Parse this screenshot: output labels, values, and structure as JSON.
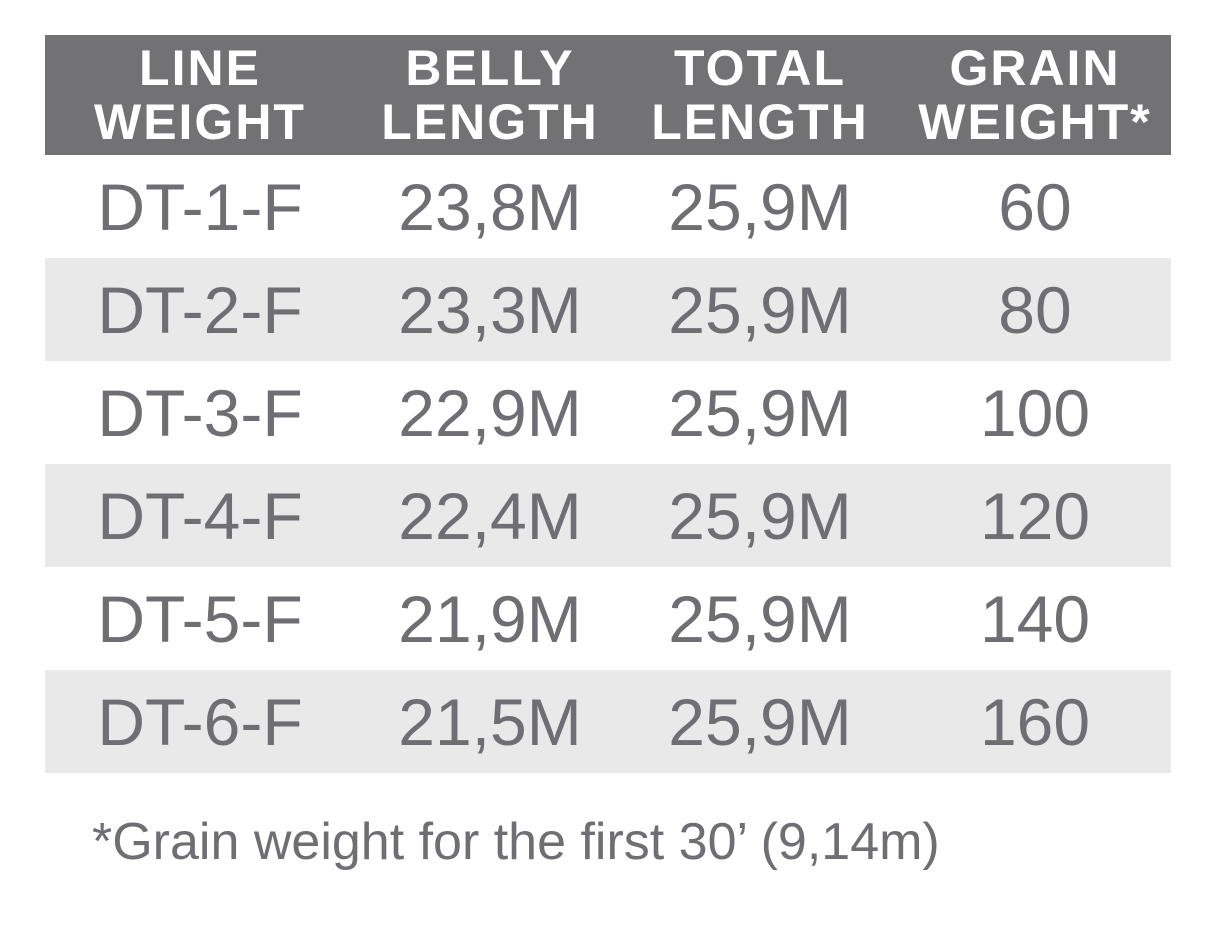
{
  "table": {
    "header": [
      [
        "LINE",
        "WEIGHT"
      ],
      [
        "BELLY",
        "LENGTH"
      ],
      [
        "TOTAL",
        "LENGTH"
      ],
      [
        "GRAIN",
        "WEIGHT*"
      ]
    ],
    "rows": [
      [
        "DT-1-F",
        "23,8M",
        "25,9M",
        "60"
      ],
      [
        "DT-2-F",
        "23,3M",
        "25,9M",
        "80"
      ],
      [
        "DT-3-F",
        "22,9M",
        "25,9M",
        "100"
      ],
      [
        "DT-4-F",
        "22,4M",
        "25,9M",
        "120"
      ],
      [
        "DT-5-F",
        "21,9M",
        "25,9M",
        "140"
      ],
      [
        "DT-6-F",
        "21,5M",
        "25,9M",
        "160"
      ]
    ]
  },
  "footnote": "*Grain weight for the first 30’ (9,14m)"
}
